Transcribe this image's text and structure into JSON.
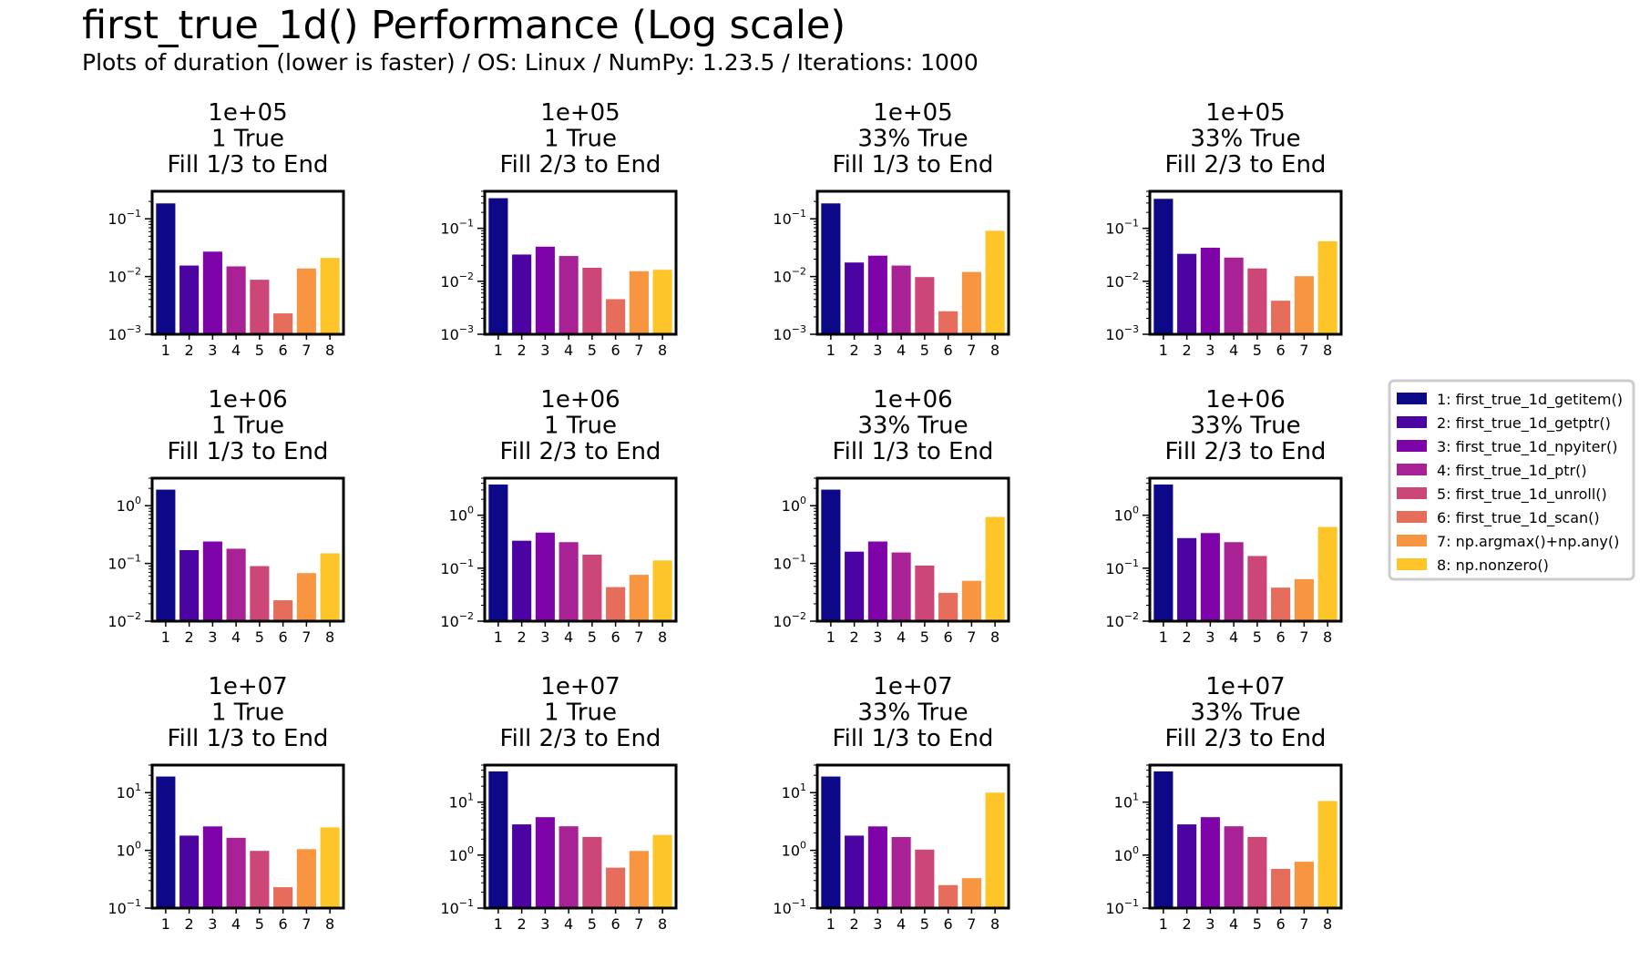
{
  "figure": {
    "title": "first_true_1d() Performance (Log scale)",
    "subtitle": "Plots of duration (lower is faster) / OS: Linux / NumPy: 1.23.5 / Iterations: 1000"
  },
  "colors": [
    "#0d0887",
    "#4b03a1",
    "#7e03a8",
    "#a82296",
    "#cc4778",
    "#e66c5c",
    "#f89540",
    "#fdc527"
  ],
  "legend": {
    "placement": "right",
    "entries": [
      "1: first_true_1d_getitem()",
      "2: first_true_1d_getptr()",
      "3: first_true_1d_npyiter()",
      "4: first_true_1d_ptr()",
      "5: first_true_1d_unroll()",
      "6: first_true_1d_scan()",
      "7: np.argmax()+np.any()",
      "8: np.nonzero()"
    ]
  },
  "chart_data": [
    {
      "type": "bar",
      "title": "1e+05\n1 True\nFill 1/3 to End",
      "categories": [
        "1",
        "2",
        "3",
        "4",
        "5",
        "6",
        "7",
        "8"
      ],
      "values": [
        0.185,
        0.0155,
        0.027,
        0.015,
        0.0088,
        0.0023,
        0.0138,
        0.021
      ],
      "yscale": "log",
      "ylim": [
        0.001,
        0.3
      ],
      "yticks": [
        -3,
        -2,
        -1
      ],
      "grid": false
    },
    {
      "type": "bar",
      "title": "1e+05\n1 True\nFill 2/3 to End",
      "categories": [
        "1",
        "2",
        "3",
        "4",
        "5",
        "6",
        "7",
        "8"
      ],
      "values": [
        0.37,
        0.032,
        0.045,
        0.03,
        0.018,
        0.0046,
        0.0155,
        0.0165
      ],
      "yscale": "log",
      "ylim": [
        0.001,
        0.5
      ],
      "yticks": [
        -3,
        -2,
        -1
      ],
      "grid": false
    },
    {
      "type": "bar",
      "title": "1e+05\n33% True\nFill 1/3 to End",
      "categories": [
        "1",
        "2",
        "3",
        "4",
        "5",
        "6",
        "7",
        "8"
      ],
      "values": [
        0.185,
        0.0175,
        0.023,
        0.0155,
        0.0098,
        0.0025,
        0.012,
        0.062
      ],
      "yscale": "log",
      "ylim": [
        0.001,
        0.3
      ],
      "yticks": [
        -3,
        -2,
        -1
      ],
      "grid": false
    },
    {
      "type": "bar",
      "title": "1e+05\n33% True\nFill 2/3 to End",
      "categories": [
        "1",
        "2",
        "3",
        "4",
        "5",
        "6",
        "7",
        "8"
      ],
      "values": [
        0.36,
        0.033,
        0.043,
        0.028,
        0.0175,
        0.0043,
        0.0125,
        0.057
      ],
      "yscale": "log",
      "ylim": [
        0.001,
        0.5
      ],
      "yticks": [
        -3,
        -2,
        -1
      ],
      "grid": false
    },
    {
      "type": "bar",
      "title": "1e+06\n1 True\nFill 1/3 to End",
      "categories": [
        "1",
        "2",
        "3",
        "4",
        "5",
        "6",
        "7",
        "8"
      ],
      "values": [
        1.9,
        0.17,
        0.24,
        0.18,
        0.09,
        0.023,
        0.068,
        0.15
      ],
      "yscale": "log",
      "ylim": [
        0.01,
        3
      ],
      "yticks": [
        -2,
        -1,
        0
      ],
      "grid": false
    },
    {
      "type": "bar",
      "title": "1e+06\n1 True\nFill 2/3 to End",
      "categories": [
        "1",
        "2",
        "3",
        "4",
        "5",
        "6",
        "7",
        "8"
      ],
      "values": [
        3.8,
        0.33,
        0.47,
        0.31,
        0.18,
        0.044,
        0.075,
        0.14
      ],
      "yscale": "log",
      "ylim": [
        0.01,
        5
      ],
      "yticks": [
        -2,
        -1,
        0
      ],
      "grid": false
    },
    {
      "type": "bar",
      "title": "1e+06\n33% True\nFill 1/3 to End",
      "categories": [
        "1",
        "2",
        "3",
        "4",
        "5",
        "6",
        "7",
        "8"
      ],
      "values": [
        1.9,
        0.16,
        0.24,
        0.155,
        0.092,
        0.031,
        0.05,
        0.64
      ],
      "yscale": "log",
      "ylim": [
        0.01,
        3
      ],
      "yticks": [
        -2,
        -1,
        0
      ],
      "grid": false
    },
    {
      "type": "bar",
      "title": "1e+06\n33% True\nFill 2/3 to End",
      "categories": [
        "1",
        "2",
        "3",
        "4",
        "5",
        "6",
        "7",
        "8"
      ],
      "values": [
        3.8,
        0.37,
        0.46,
        0.31,
        0.17,
        0.043,
        0.062,
        0.6
      ],
      "yscale": "log",
      "ylim": [
        0.01,
        5
      ],
      "yticks": [
        -2,
        -1,
        0
      ],
      "grid": false
    },
    {
      "type": "bar",
      "title": "1e+07\n1 True\nFill 1/3 to End",
      "categories": [
        "1",
        "2",
        "3",
        "4",
        "5",
        "6",
        "7",
        "8"
      ],
      "values": [
        19,
        1.8,
        2.6,
        1.65,
        0.98,
        0.23,
        1.05,
        2.5
      ],
      "yscale": "log",
      "ylim": [
        0.1,
        30
      ],
      "yticks": [
        -1,
        0,
        1
      ],
      "grid": false
    },
    {
      "type": "bar",
      "title": "1e+07\n1 True\nFill 2/3 to End",
      "categories": [
        "1",
        "2",
        "3",
        "4",
        "5",
        "6",
        "7",
        "8"
      ],
      "values": [
        38,
        3.8,
        5.2,
        3.5,
        2.2,
        0.58,
        1.2,
        2.4
      ],
      "yscale": "log",
      "ylim": [
        0.1,
        50
      ],
      "yticks": [
        -1,
        0,
        1
      ],
      "grid": false
    },
    {
      "type": "bar",
      "title": "1e+07\n33% True\nFill 1/3 to End",
      "categories": [
        "1",
        "2",
        "3",
        "4",
        "5",
        "6",
        "7",
        "8"
      ],
      "values": [
        19,
        1.8,
        2.6,
        1.7,
        1.03,
        0.25,
        0.33,
        10
      ],
      "yscale": "log",
      "ylim": [
        0.1,
        30
      ],
      "yticks": [
        -1,
        0,
        1
      ],
      "grid": false
    },
    {
      "type": "bar",
      "title": "1e+07\n33% True\nFill 2/3 to End",
      "categories": [
        "1",
        "2",
        "3",
        "4",
        "5",
        "6",
        "7",
        "8"
      ],
      "values": [
        38,
        3.8,
        5.2,
        3.5,
        2.2,
        0.55,
        0.75,
        10.5
      ],
      "yscale": "log",
      "ylim": [
        0.1,
        50
      ],
      "yticks": [
        -1,
        0,
        1
      ],
      "grid": false
    }
  ]
}
